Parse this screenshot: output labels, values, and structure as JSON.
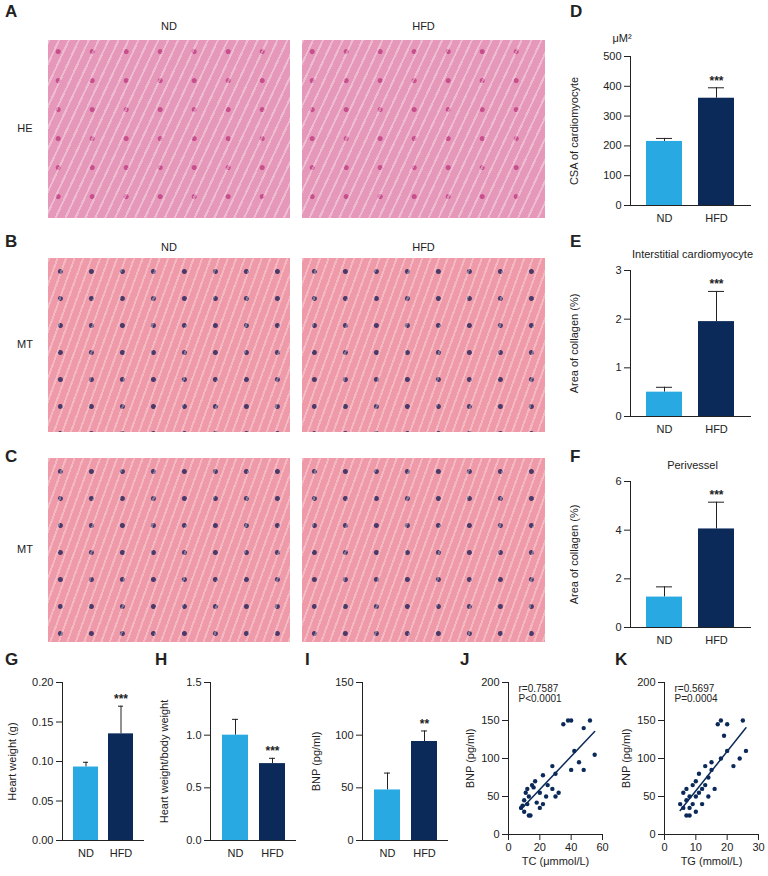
{
  "images": [
    {
      "panel": "A",
      "stain": "HE",
      "labels": [
        "ND",
        "HFD"
      ]
    },
    {
      "panel": "B",
      "stain": "MT",
      "labels": [
        "ND",
        "HFD"
      ]
    },
    {
      "panel": "C",
      "stain": "MT"
    }
  ],
  "chart_data": [
    {
      "panel": "D",
      "type": "bar",
      "subtitle": "μM²",
      "y_label": "CSA of cardiomyocyte",
      "categories": [
        "ND",
        "HFD"
      ],
      "values": [
        215,
        360
      ],
      "errors": [
        10,
        35
      ],
      "colors": [
        "#29a9e1",
        "#0c2a59"
      ],
      "ylim": [
        0,
        500
      ],
      "yticks": [
        0,
        100,
        200,
        300,
        400,
        500
      ],
      "annotations": [
        {
          "category": "HFD",
          "text": "***"
        }
      ]
    },
    {
      "panel": "E",
      "type": "bar",
      "title": "Interstitial cardiomyocyte",
      "y_label": "Area of collagen (%)",
      "categories": [
        "ND",
        "HFD"
      ],
      "values": [
        0.5,
        1.95
      ],
      "errors": [
        0.1,
        0.62
      ],
      "colors": [
        "#29a9e1",
        "#0c2a59"
      ],
      "ylim": [
        0,
        3
      ],
      "yticks": [
        0,
        1,
        2,
        3
      ],
      "annotations": [
        {
          "category": "HFD",
          "text": "***"
        }
      ]
    },
    {
      "panel": "F",
      "type": "bar",
      "title": "Perivessel",
      "y_label": "Area of collagen (%)",
      "categories": [
        "ND",
        "HFD"
      ],
      "values": [
        1.25,
        4.05
      ],
      "errors": [
        0.42,
        1.1
      ],
      "colors": [
        "#29a9e1",
        "#0c2a59"
      ],
      "ylim": [
        0,
        6
      ],
      "yticks": [
        0,
        2,
        4,
        6
      ],
      "annotations": [
        {
          "category": "HFD",
          "text": "***"
        }
      ]
    },
    {
      "panel": "G",
      "type": "bar",
      "y_label": "Heart weight (g)",
      "categories": [
        "ND",
        "HFD"
      ],
      "values": [
        0.093,
        0.135
      ],
      "errors": [
        0.006,
        0.035
      ],
      "colors": [
        "#29a9e1",
        "#0c2a59"
      ],
      "ylim": [
        0,
        0.2
      ],
      "yticks": [
        {
          "value": 0,
          "label": "0.00"
        },
        {
          "value": 0.05,
          "label": "0.05"
        },
        {
          "value": 0.1,
          "label": "0.10"
        },
        {
          "value": 0.15,
          "label": "0.15"
        },
        {
          "value": 0.2,
          "label": "0.20"
        }
      ],
      "annotations": [
        {
          "category": "HFD",
          "text": "***"
        }
      ]
    },
    {
      "panel": "H",
      "type": "bar",
      "y_label": "Heart weight/body weight",
      "categories": [
        "ND",
        "HFD"
      ],
      "values": [
        1.0,
        0.73
      ],
      "errors": [
        0.15,
        0.05
      ],
      "colors": [
        "#29a9e1",
        "#0c2a59"
      ],
      "ylim": [
        0,
        1.5
      ],
      "yticks": [
        {
          "value": 0,
          "label": "0.0"
        },
        0.5,
        {
          "value": 1,
          "label": "1.0"
        },
        1.5
      ],
      "annotations": [
        {
          "category": "HFD",
          "text": "***"
        }
      ]
    },
    {
      "panel": "I",
      "type": "bar",
      "y_label": "BNP (pg/ml)",
      "categories": [
        "ND",
        "HFD"
      ],
      "values": [
        48,
        94
      ],
      "errors": [
        16,
        10
      ],
      "colors": [
        "#29a9e1",
        "#0c2a59"
      ],
      "ylim": [
        0,
        150
      ],
      "yticks": [
        0,
        50,
        100,
        150
      ],
      "annotations": [
        {
          "category": "HFD",
          "text": "**"
        }
      ]
    },
    {
      "panel": "J",
      "type": "scatter",
      "x_label": "TC (μmmol/L)",
      "y_label": "BNP (pg/ml)",
      "color": "#0c2a59",
      "annotations": [
        "r=0.7587",
        "P<0.0001"
      ],
      "x": [
        8,
        9,
        10,
        10,
        11,
        12,
        12,
        13,
        14,
        13,
        15,
        16,
        17,
        18,
        20,
        20,
        22,
        22,
        24,
        25,
        28,
        28,
        30,
        30,
        32,
        35,
        38,
        40,
        40,
        42,
        45,
        48,
        48,
        52,
        55
      ],
      "values": [
        35,
        38,
        30,
        45,
        55,
        60,
        40,
        25,
        25,
        50,
        65,
        62,
        70,
        42,
        35,
        55,
        78,
        40,
        50,
        65,
        60,
        90,
        80,
        50,
        55,
        145,
        150,
        85,
        150,
        110,
        95,
        140,
        85,
        150,
        105
      ],
      "xlim": [
        0,
        60
      ],
      "xticks": [
        0,
        20,
        40,
        60
      ],
      "ylim": [
        0,
        200
      ],
      "yticks": [
        0,
        50,
        100,
        150,
        200
      ]
    },
    {
      "panel": "K",
      "type": "scatter",
      "x_label": "TG (mmol/L)",
      "y_label": "BNP (pg/ml)",
      "color": "#0c2a59",
      "annotations": [
        "r=0.5697",
        "P=0.0004"
      ],
      "x": [
        5,
        6,
        6,
        7,
        7,
        7,
        8,
        8,
        8,
        9,
        9,
        10,
        10,
        10,
        11,
        11,
        12,
        12,
        13,
        13,
        14,
        14,
        15,
        15,
        16,
        17,
        18,
        18,
        19,
        20,
        20,
        22,
        24,
        25,
        26
      ],
      "values": [
        40,
        35,
        55,
        45,
        60,
        25,
        25,
        50,
        35,
        65,
        40,
        70,
        50,
        30,
        55,
        80,
        60,
        40,
        65,
        90,
        50,
        75,
        85,
        95,
        60,
        145,
        100,
        150,
        130,
        110,
        145,
        90,
        100,
        150,
        110
      ],
      "xlim": [
        0,
        30
      ],
      "xticks": [
        0,
        10,
        20,
        30
      ],
      "ylim": [
        0,
        200
      ],
      "yticks": [
        0,
        50,
        100,
        150,
        200
      ]
    }
  ]
}
